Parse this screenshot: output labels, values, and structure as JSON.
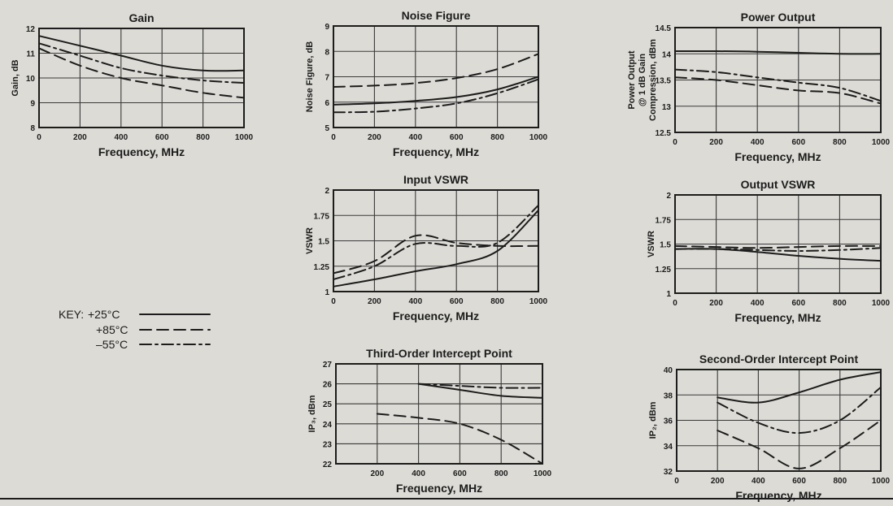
{
  "legend": {
    "key_label": "KEY:",
    "entries": [
      {
        "label": "+25°C",
        "dash": "solid"
      },
      {
        "label": "+85°C",
        "dash": "dashed"
      },
      {
        "label": "–55°C",
        "dash": "dashdot"
      }
    ]
  },
  "chart_data": [
    {
      "type": "line",
      "title": "Gain",
      "xlabel": "Frequency, MHz",
      "ylabel": [
        "Gain, dB"
      ],
      "xlim": [
        0,
        1000
      ],
      "ylim": [
        8,
        12
      ],
      "xticks": [
        0,
        200,
        400,
        600,
        800,
        1000
      ],
      "yticks": [
        8,
        9,
        10,
        11,
        12
      ],
      "grid": true,
      "series": [
        {
          "temp": "+25°C",
          "x": [
            0,
            200,
            400,
            600,
            800,
            1000
          ],
          "y": [
            11.7,
            11.3,
            10.9,
            10.5,
            10.3,
            10.3
          ]
        },
        {
          "temp": "+85°C",
          "x": [
            0,
            200,
            400,
            600,
            800,
            1000
          ],
          "y": [
            11.2,
            10.5,
            10.0,
            9.7,
            9.4,
            9.2
          ]
        },
        {
          "temp": "–55°C",
          "x": [
            0,
            200,
            400,
            600,
            800,
            1000
          ],
          "y": [
            11.4,
            10.9,
            10.4,
            10.1,
            9.9,
            9.8
          ]
        }
      ]
    },
    {
      "type": "line",
      "title": "Noise Figure",
      "xlabel": "Frequency, MHz",
      "ylabel": [
        "Noise Figure, dB"
      ],
      "xlim": [
        0,
        1000
      ],
      "ylim": [
        5,
        9
      ],
      "xticks": [
        0,
        200,
        400,
        600,
        800,
        1000
      ],
      "yticks": [
        5,
        6,
        7,
        8,
        9
      ],
      "grid": true,
      "series": [
        {
          "temp": "+25°C",
          "x": [
            0,
            200,
            400,
            600,
            800,
            1000
          ],
          "y": [
            5.9,
            5.95,
            6.05,
            6.2,
            6.5,
            7.0
          ]
        },
        {
          "temp": "+85°C",
          "x": [
            0,
            200,
            400,
            600,
            800,
            1000
          ],
          "y": [
            6.6,
            6.65,
            6.75,
            6.95,
            7.3,
            7.9
          ]
        },
        {
          "temp": "–55°C",
          "x": [
            0,
            200,
            400,
            600,
            800,
            1000
          ],
          "y": [
            5.6,
            5.62,
            5.75,
            5.95,
            6.35,
            6.9
          ]
        }
      ]
    },
    {
      "type": "line",
      "title": "Power Output",
      "xlabel": "Frequency, MHz",
      "ylabel": [
        "Power Output",
        "@ 1 dB Gain",
        "Compression, dBm"
      ],
      "xlim": [
        0,
        1000
      ],
      "ylim": [
        12.5,
        14.5
      ],
      "xticks": [
        0,
        200,
        400,
        600,
        800,
        1000
      ],
      "yticks": [
        12.5,
        13.0,
        13.5,
        14.0,
        14.5
      ],
      "grid": true,
      "series": [
        {
          "temp": "+25°C",
          "x": [
            0,
            200,
            400,
            600,
            800,
            1000
          ],
          "y": [
            14.05,
            14.05,
            14.04,
            14.02,
            14.0,
            14.0
          ]
        },
        {
          "temp": "+85°C",
          "x": [
            0,
            200,
            400,
            600,
            800,
            1000
          ],
          "y": [
            13.55,
            13.5,
            13.4,
            13.3,
            13.25,
            13.05
          ]
        },
        {
          "temp": "–55°C",
          "x": [
            0,
            200,
            400,
            600,
            800,
            1000
          ],
          "y": [
            13.7,
            13.65,
            13.55,
            13.45,
            13.35,
            13.1
          ]
        }
      ]
    },
    {
      "type": "line",
      "title": "Input VSWR",
      "xlabel": "Frequency, MHz",
      "ylabel": [
        "VSWR"
      ],
      "xlim": [
        0,
        1000
      ],
      "ylim": [
        1.0,
        2.0
      ],
      "xticks": [
        0,
        200,
        400,
        600,
        800,
        1000
      ],
      "yticks": [
        1.0,
        1.25,
        1.5,
        1.75,
        2.0
      ],
      "grid": true,
      "series": [
        {
          "temp": "+25°C",
          "x": [
            0,
            200,
            400,
            600,
            800,
            1000
          ],
          "y": [
            1.05,
            1.12,
            1.2,
            1.27,
            1.4,
            1.8
          ]
        },
        {
          "temp": "+85°C",
          "x": [
            0,
            200,
            400,
            600,
            800,
            1000
          ],
          "y": [
            1.18,
            1.3,
            1.55,
            1.48,
            1.45,
            1.45
          ]
        },
        {
          "temp": "–55°C",
          "x": [
            0,
            200,
            400,
            600,
            800,
            1000
          ],
          "y": [
            1.12,
            1.25,
            1.47,
            1.45,
            1.48,
            1.85
          ]
        }
      ]
    },
    {
      "type": "line",
      "title": "Output VSWR",
      "xlabel": "Frequency, MHz",
      "ylabel": [
        "VSWR"
      ],
      "xlim": [
        0,
        1000
      ],
      "ylim": [
        1.0,
        2.0
      ],
      "xticks": [
        0,
        200,
        400,
        600,
        800,
        1000
      ],
      "yticks": [
        1.0,
        1.25,
        1.5,
        1.75,
        2.0
      ],
      "grid": true,
      "series": [
        {
          "temp": "+25°C",
          "x": [
            0,
            200,
            400,
            600,
            800,
            1000
          ],
          "y": [
            1.45,
            1.45,
            1.42,
            1.38,
            1.35,
            1.33
          ]
        },
        {
          "temp": "+85°C",
          "x": [
            0,
            200,
            400,
            600,
            800,
            1000
          ],
          "y": [
            1.48,
            1.47,
            1.46,
            1.47,
            1.48,
            1.48
          ]
        },
        {
          "temp": "–55°C",
          "x": [
            0,
            200,
            400,
            600,
            800,
            1000
          ],
          "y": [
            1.45,
            1.45,
            1.44,
            1.43,
            1.44,
            1.46
          ]
        }
      ]
    },
    {
      "type": "line",
      "title": "Third-Order Intercept Point",
      "xlabel": "Frequency, MHz",
      "ylabel": [
        "IP₃, dBm"
      ],
      "xlim": [
        0,
        1000
      ],
      "ylim": [
        22,
        27
      ],
      "xticks": [
        200,
        400,
        600,
        800,
        1000
      ],
      "yticks": [
        22,
        23,
        24,
        25,
        26,
        27
      ],
      "grid": true,
      "series": [
        {
          "temp": "+25°C",
          "x": [
            400,
            600,
            800,
            1000
          ],
          "y": [
            26.0,
            25.7,
            25.4,
            25.3
          ]
        },
        {
          "temp": "+85°C",
          "x": [
            200,
            400,
            600,
            800,
            1000
          ],
          "y": [
            24.5,
            24.3,
            24.0,
            23.2,
            22.0
          ]
        },
        {
          "temp": "–55°C",
          "x": [
            400,
            600,
            800,
            1000
          ],
          "y": [
            26.0,
            25.9,
            25.8,
            25.8
          ]
        }
      ]
    },
    {
      "type": "line",
      "title": "Second-Order Intercept Point",
      "xlabel": "Frequency, MHz",
      "ylabel": [
        "IP₂, dBm"
      ],
      "xlim": [
        0,
        1000
      ],
      "ylim": [
        32,
        40
      ],
      "xticks": [
        0,
        200,
        400,
        600,
        800,
        1000
      ],
      "yticks": [
        32,
        34,
        36,
        38,
        40
      ],
      "grid": true,
      "series": [
        {
          "temp": "+25°C",
          "x": [
            200,
            400,
            600,
            800,
            1000
          ],
          "y": [
            37.8,
            37.4,
            38.2,
            39.2,
            39.8
          ]
        },
        {
          "temp": "+85°C",
          "x": [
            200,
            400,
            600,
            800,
            1000
          ],
          "y": [
            35.2,
            33.8,
            32.2,
            33.8,
            36.0
          ]
        },
        {
          "temp": "–55°C",
          "x": [
            200,
            400,
            600,
            800,
            1000
          ],
          "y": [
            37.4,
            35.8,
            35.0,
            36.0,
            38.6
          ]
        }
      ]
    }
  ]
}
